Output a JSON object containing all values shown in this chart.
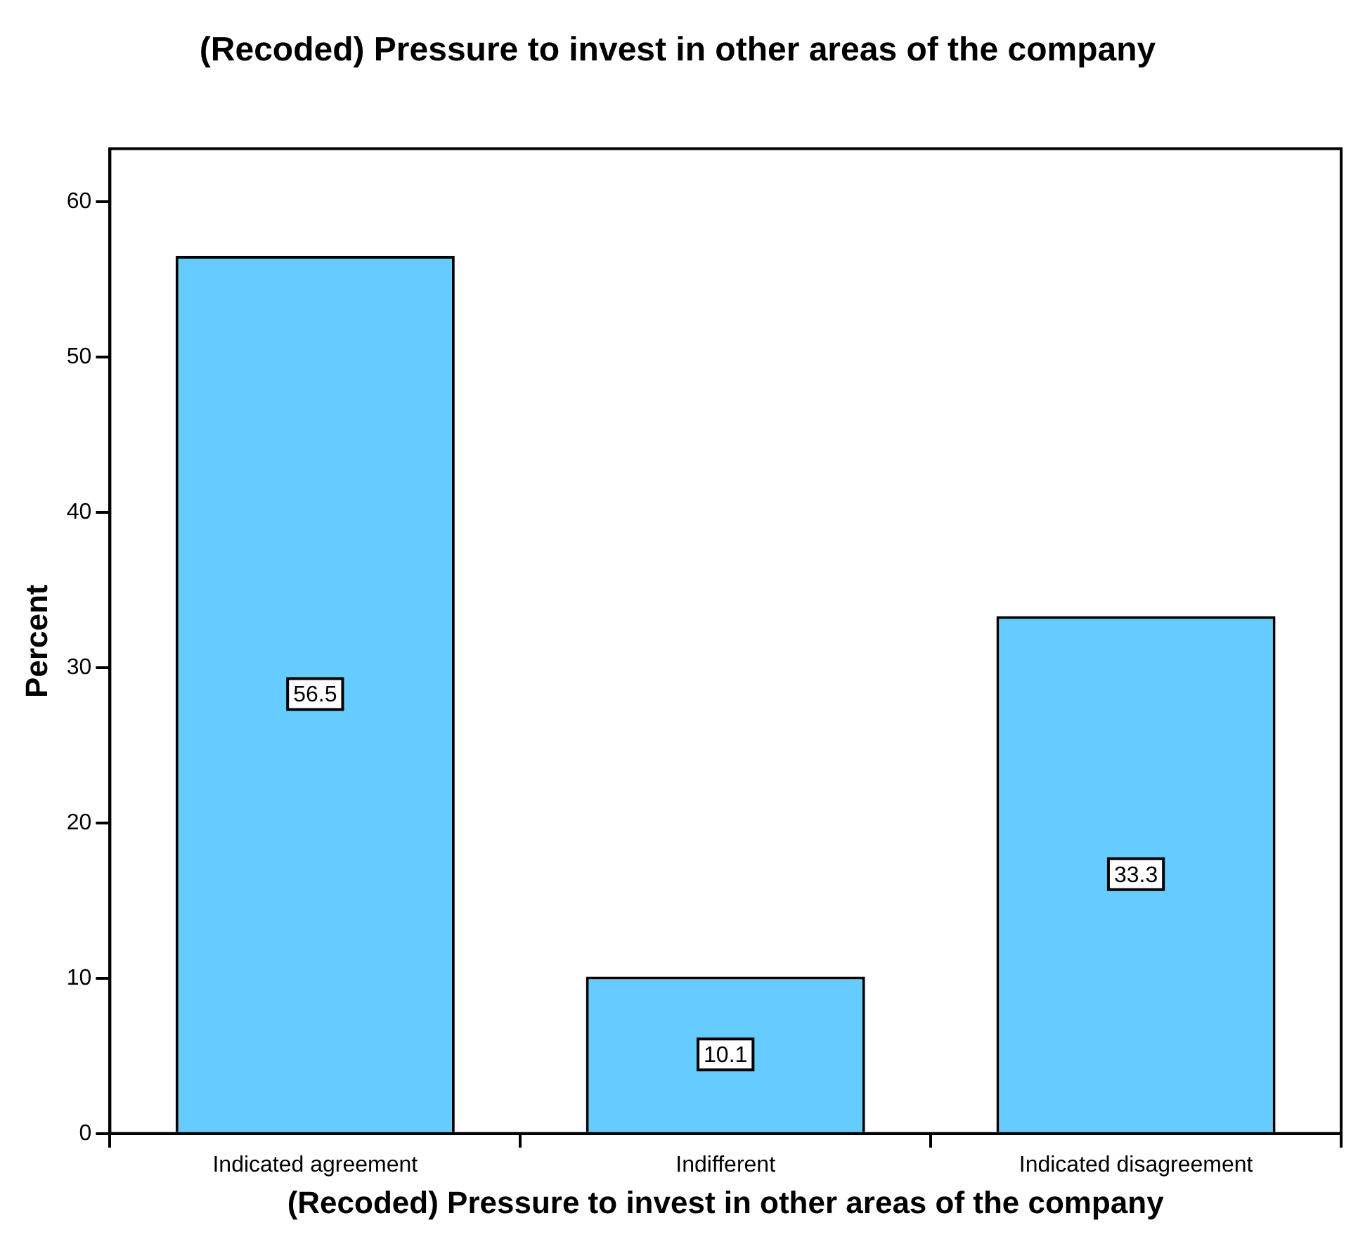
{
  "chart_data": {
    "type": "bar",
    "title": "(Recoded) Pressure to invest in other areas of the company",
    "xlabel": "(Recoded) Pressure to invest in other areas of the company",
    "ylabel": "Percent",
    "categories": [
      "Indicated agreement",
      "Indifferent",
      "Indicated disagreement"
    ],
    "values": [
      56.5,
      10.1,
      33.3
    ],
    "color": "#66ccff",
    "ylim": [
      0,
      63.4
    ],
    "yticks": [
      0,
      10,
      20,
      30,
      40,
      50,
      60
    ],
    "grid": false,
    "legend": false,
    "data_labels": true
  }
}
